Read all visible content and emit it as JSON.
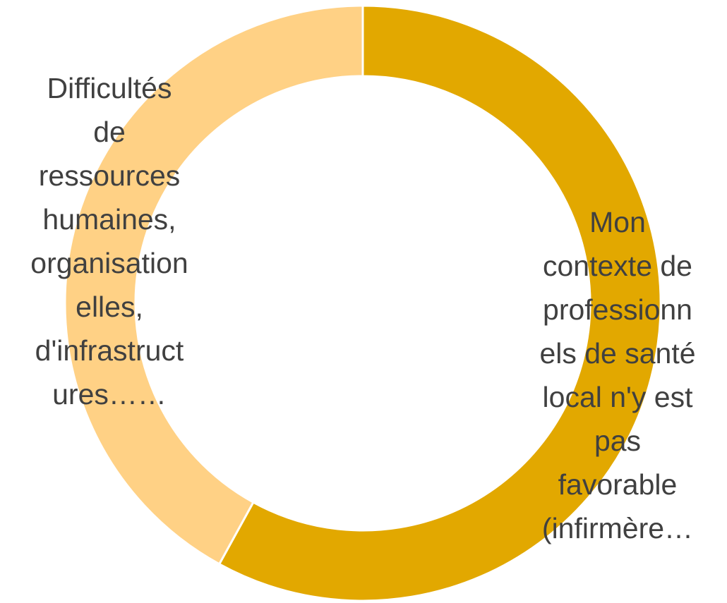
{
  "chart_data": {
    "type": "donut",
    "categories": [
      "Difficultés\nde\nressources\nhumaines,\norganisation\nelles,\nd'infrastruct\nures……",
      "Mon\ncontexte de\nprofessionn\nels de santé\nlocal n'y est\npas\nfavorable\n(infirmère…"
    ],
    "values": [
      42,
      58
    ],
    "colors": [
      "#FFD185",
      "#E2A800"
    ]
  }
}
